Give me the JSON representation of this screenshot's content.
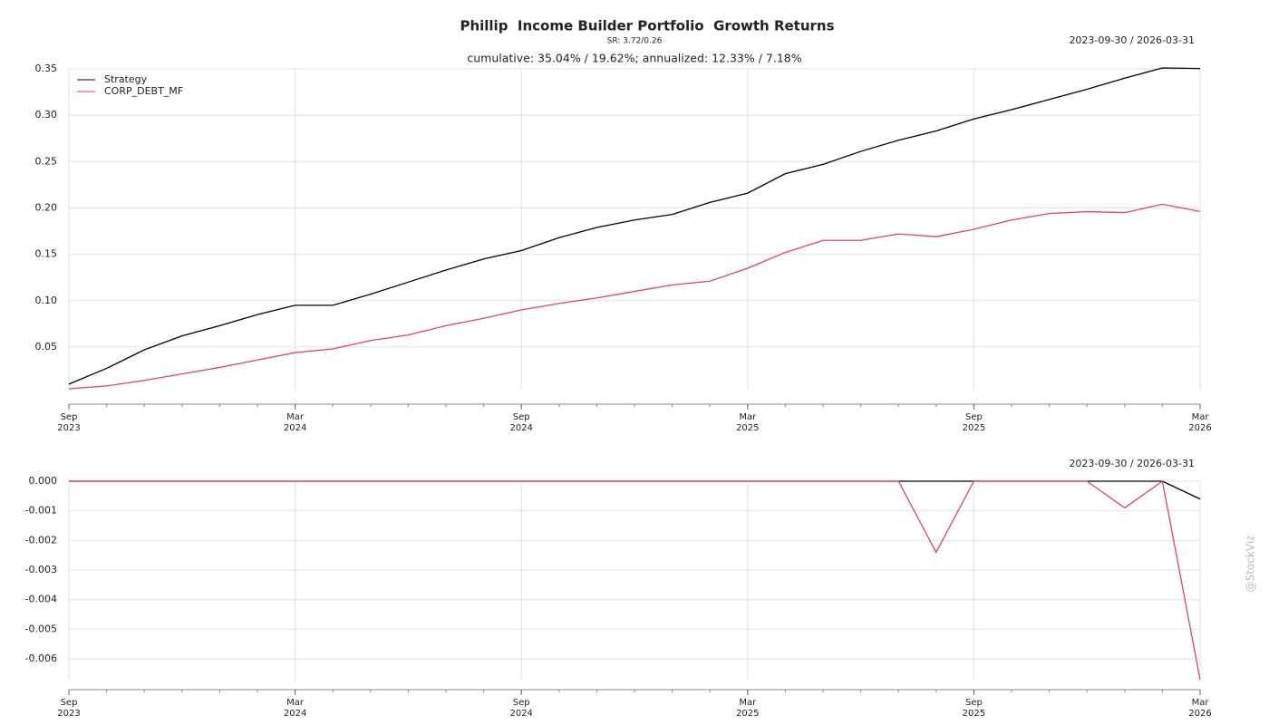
{
  "watermark": "@StockViz",
  "chart_data": [
    {
      "type": "line",
      "title": "Phillip  Income Builder Portfolio  Growth Returns",
      "subtitle": "SR: 3.72/0.26",
      "annotation": "cumulative: 35.04% / 19.62%; annualized: 12.33% / 7.18%",
      "date_range": "2023-09-30 / 2026-03-31",
      "x": [
        "2023-09",
        "2023-10",
        "2023-11",
        "2023-12",
        "2024-01",
        "2024-02",
        "2024-03",
        "2024-04",
        "2024-05",
        "2024-06",
        "2024-07",
        "2024-08",
        "2024-09",
        "2024-10",
        "2024-11",
        "2024-12",
        "2025-01",
        "2025-02",
        "2025-03",
        "2025-04",
        "2025-05",
        "2025-06",
        "2025-07",
        "2025-08",
        "2025-09",
        "2025-10",
        "2025-11",
        "2025-12",
        "2026-01",
        "2026-02",
        "2026-03"
      ],
      "xlim": [
        "2023-09",
        "2026-03"
      ],
      "xticks": [
        {
          "value": "2023-09",
          "label": [
            "Sep",
            "2023"
          ]
        },
        {
          "value": "2024-03",
          "label": [
            "Mar",
            "2024"
          ]
        },
        {
          "value": "2024-09",
          "label": [
            "Sep",
            "2024"
          ]
        },
        {
          "value": "2025-03",
          "label": [
            "Mar",
            "2025"
          ]
        },
        {
          "value": "2025-09",
          "label": [
            "Sep",
            "2025"
          ]
        },
        {
          "value": "2026-03",
          "label": [
            "Mar",
            "2026"
          ]
        }
      ],
      "ylim": [
        0.004,
        0.35
      ],
      "yticks": [
        0.05,
        {
          "value": 0.1,
          "label": "0.10"
        },
        0.15,
        {
          "value": 0.2,
          "label": "0.20"
        },
        0.25,
        {
          "value": 0.3,
          "label": "0.30"
        },
        0.35
      ],
      "grid": true,
      "legend": "upper left",
      "series": [
        {
          "name": "Strategy",
          "color": "#000000",
          "values": [
            0.01,
            0.027,
            0.047,
            0.062,
            0.073,
            0.085,
            0.095,
            0.095,
            0.107,
            0.12,
            0.133,
            0.145,
            0.154,
            0.168,
            0.179,
            0.187,
            0.193,
            0.206,
            0.216,
            0.237,
            0.247,
            0.261,
            0.273,
            0.283,
            0.296,
            0.306,
            0.317,
            0.328,
            0.34,
            0.351,
            0.3504
          ]
        },
        {
          "name": "CORP_DEBT_MF",
          "color": "#e0455f",
          "values": [
            0.005,
            0.008,
            0.014,
            0.021,
            0.028,
            0.036,
            0.044,
            0.048,
            0.057,
            0.063,
            0.073,
            0.081,
            0.09,
            0.097,
            0.103,
            0.11,
            0.117,
            0.121,
            0.135,
            0.152,
            0.165,
            0.165,
            0.172,
            0.169,
            0.177,
            0.187,
            0.194,
            0.196,
            0.195,
            0.204,
            0.1962
          ]
        }
      ]
    },
    {
      "type": "line",
      "date_range": "2023-09-30 / 2026-03-31",
      "x": [
        "2023-09",
        "2023-10",
        "2023-11",
        "2023-12",
        "2024-01",
        "2024-02",
        "2024-03",
        "2024-04",
        "2024-05",
        "2024-06",
        "2024-07",
        "2024-08",
        "2024-09",
        "2024-10",
        "2024-11",
        "2024-12",
        "2025-01",
        "2025-02",
        "2025-03",
        "2025-04",
        "2025-05",
        "2025-06",
        "2025-07",
        "2025-08",
        "2025-09",
        "2025-10",
        "2025-11",
        "2025-12",
        "2026-01",
        "2026-02",
        "2026-03"
      ],
      "xlim": [
        "2023-09",
        "2026-03"
      ],
      "xticks": [
        {
          "value": "2023-09",
          "label": [
            "Sep",
            "2023"
          ]
        },
        {
          "value": "2024-03",
          "label": [
            "Mar",
            "2024"
          ]
        },
        {
          "value": "2024-09",
          "label": [
            "Sep",
            "2024"
          ]
        },
        {
          "value": "2025-03",
          "label": [
            "Mar",
            "2025"
          ]
        },
        {
          "value": "2025-09",
          "label": [
            "Sep",
            "2025"
          ]
        },
        {
          "value": "2026-03",
          "label": [
            "Mar",
            "2026"
          ]
        }
      ],
      "ylim": [
        -0.0067,
        0
      ],
      "yticks": [
        -0.006,
        -0.005,
        -0.004,
        -0.003,
        -0.002,
        -0.001,
        {
          "value": 0,
          "label": "0.000"
        }
      ],
      "grid": true,
      "series": [
        {
          "name": "Strategy",
          "color": "#000000",
          "values": [
            0,
            0,
            0,
            0,
            0,
            0,
            0,
            0,
            0,
            0,
            0,
            0,
            0,
            0,
            0,
            0,
            0,
            0,
            0,
            0,
            0,
            0,
            0,
            0,
            0,
            0,
            0,
            0,
            0,
            0,
            -0.0006
          ]
        },
        {
          "name": "CORP_DEBT_MF",
          "color": "#e0455f",
          "values": [
            0,
            0,
            0,
            0,
            0,
            0,
            0,
            0,
            0,
            0,
            0,
            0,
            0,
            0,
            0,
            0,
            0,
            0,
            0,
            0,
            0,
            0,
            0,
            -0.0024,
            0,
            0,
            0,
            0,
            -0.0009,
            0,
            -0.0067
          ]
        }
      ]
    }
  ]
}
